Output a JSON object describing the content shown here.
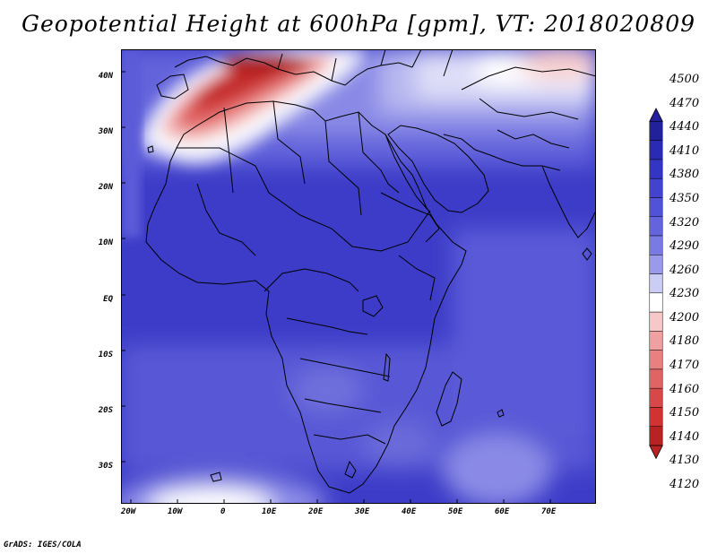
{
  "title": "Geopotential Height at 600hPa [gpm], VT: 2018020809",
  "footer": "GrADS: IGES/COLA",
  "map": {
    "lat_labels": [
      "40N",
      "30N",
      "20N",
      "10N",
      "EQ",
      "10S",
      "20S",
      "30S"
    ],
    "lon_labels": [
      "20W",
      "10W",
      "0",
      "10E",
      "20E",
      "30E",
      "40E",
      "50E",
      "60E",
      "70E"
    ],
    "variable": "Geopotential Height",
    "level": "600hPa",
    "units": "gpm"
  },
  "colorbar": {
    "levels": [
      "4500",
      "4470",
      "4440",
      "4410",
      "4380",
      "4350",
      "4320",
      "4290",
      "4260",
      "4230",
      "4200",
      "4180",
      "4170",
      "4160",
      "4150",
      "4140",
      "4130",
      "4120"
    ],
    "colors": [
      "#22209a",
      "#2b2ab4",
      "#3535c4",
      "#4343cf",
      "#5252d8",
      "#6464de",
      "#7a7ae4",
      "#9a9aea",
      "#cccdf4",
      "#ffffff",
      "#f6c8c8",
      "#efa0a0",
      "#e88080",
      "#e06464",
      "#d94848",
      "#d23232",
      "#b82222"
    ]
  },
  "colors": {
    "deep_blue": "#3a3ac8",
    "mid_blue": "#5a5ad8",
    "light_blue": "#9c9cec",
    "pale_blue": "#d7d7f6",
    "white": "#ffffff",
    "pink": "#f4b8b8",
    "red": "#d83a3a",
    "dark_red": "#a81818"
  }
}
